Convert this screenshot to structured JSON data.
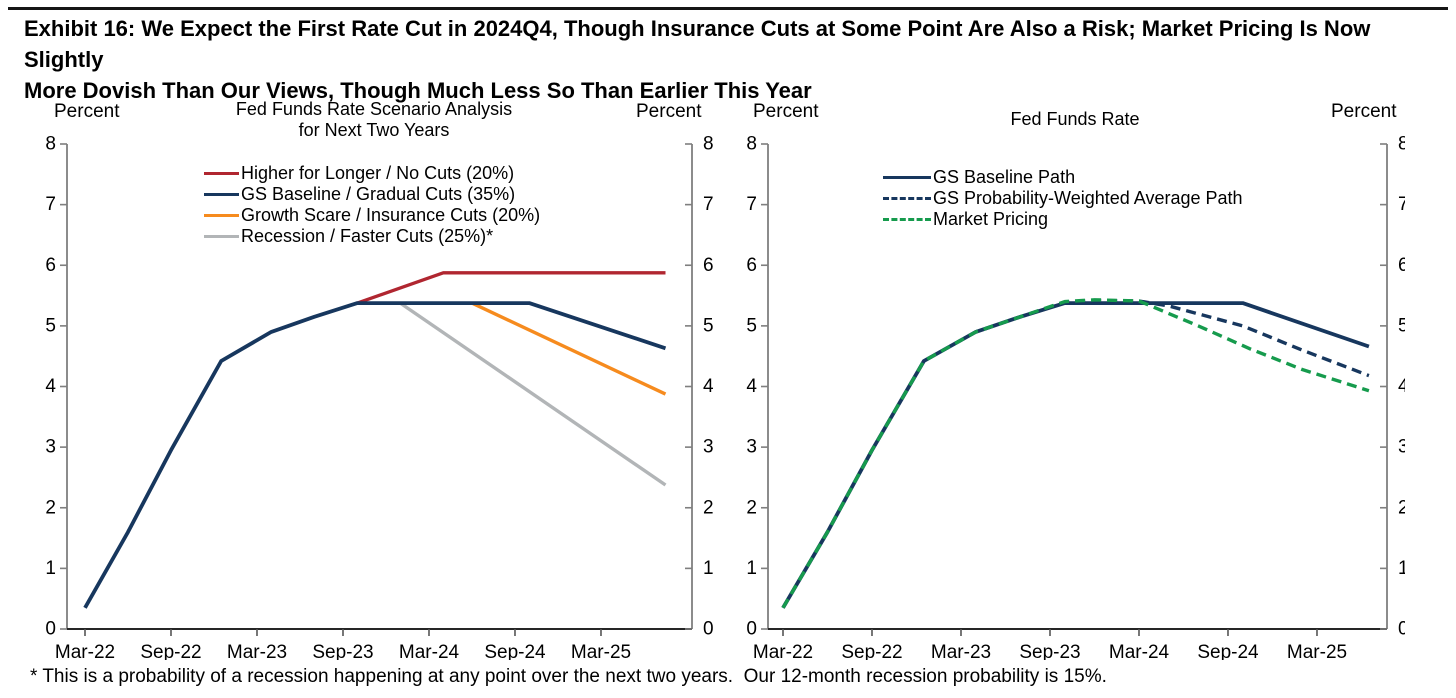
{
  "title_lines": [
    "Exhibit 16: We Expect the First Rate Cut in 2024Q4, Though Insurance Cuts at Some Point Are Also a Risk; Market Pricing Is Now Slightly",
    "More Dovish Than Our Views, Though Much Less So Than Earlier This Year"
  ],
  "footnote": "* This is a probability of a recession happening at any point over the next two years.  Our 12-month recession probability is 15%.",
  "colors": {
    "navy": "#17375e",
    "red": "#b02630",
    "orange": "#f68b1e",
    "gray": "#b2b5b7",
    "green": "#169b4d",
    "axis_gray": "#7f7f7f",
    "axis_dark": "#262626"
  },
  "chart_data": [
    {
      "type": "line",
      "title_lines": [
        "Fed Funds Rate Scenario Analysis",
        "for Next Two Years"
      ],
      "y_axis": {
        "label_left": "Percent",
        "label_right": "Percent",
        "min": 0,
        "max": 8,
        "ticks": [
          0,
          1,
          2,
          3,
          4,
          5,
          6,
          7,
          8
        ],
        "tick_labels": [
          "0",
          "1",
          "2",
          "3",
          "4",
          "5",
          "6",
          "7",
          "8"
        ]
      },
      "x_axis": {
        "unit": "months since Mar-22",
        "tick_months": [
          0,
          6,
          12,
          18,
          24,
          30,
          36
        ],
        "tick_labels": [
          "Mar-22",
          "Sep-22",
          "Mar-23",
          "Sep-23",
          "Mar-24",
          "Sep-24",
          "Mar-25"
        ]
      },
      "grid": false,
      "legend_position": "top-center",
      "series": [
        {
          "name": "Higher for Longer / No Cuts (20%)",
          "color": "#b02630",
          "line_style": "solid",
          "width": 3.3,
          "points": [
            [
              19,
              5.375
            ],
            [
              25,
              5.875
            ],
            [
              40.5,
              5.875
            ]
          ]
        },
        {
          "name": "GS Baseline / Gradual Cuts (35%)",
          "color": "#17375e",
          "line_style": "solid",
          "width": 3.8,
          "points": [
            [
              0,
              0.35
            ],
            [
              3,
              1.6
            ],
            [
              6,
              2.95
            ],
            [
              9.5,
              4.42
            ],
            [
              13,
              4.9
            ],
            [
              16,
              5.15
            ],
            [
              19,
              5.375
            ],
            [
              31,
              5.375
            ],
            [
              40.5,
              4.63
            ]
          ]
        },
        {
          "name": "Growth Scare / Insurance Cuts (20%)",
          "color": "#f68b1e",
          "line_style": "solid",
          "width": 3.4,
          "points": [
            [
              27,
              5.375
            ],
            [
              40.5,
              3.875
            ]
          ]
        },
        {
          "name": "Recession / Faster Cuts (25%)*",
          "color": "#b2b5b7",
          "line_style": "solid",
          "width": 3.4,
          "points": [
            [
              22,
              5.375
            ],
            [
              40.5,
              2.375
            ]
          ]
        }
      ],
      "render_order": [
        3,
        2,
        0,
        1
      ]
    },
    {
      "type": "line",
      "title_lines": [
        "Fed Funds Rate"
      ],
      "y_axis": {
        "label_left": "Percent",
        "label_right": "Percent",
        "min": 0,
        "max": 8,
        "ticks": [
          0,
          1,
          2,
          3,
          4,
          5,
          6,
          7,
          8
        ],
        "tick_labels": [
          "0",
          "1",
          "2",
          "3",
          "4",
          "5",
          "6",
          "7",
          "8"
        ]
      },
      "x_axis": {
        "unit": "months since Mar-22",
        "tick_months": [
          0,
          6,
          12,
          18,
          24,
          30,
          36
        ],
        "tick_labels": [
          "Mar-22",
          "Sep-22",
          "Mar-23",
          "Sep-23",
          "Mar-24",
          "Sep-24",
          "Mar-25"
        ]
      },
      "grid": false,
      "legend_position": "top-center",
      "series": [
        {
          "name": "GS Baseline Path",
          "color": "#17375e",
          "line_style": "solid",
          "width": 3.8,
          "points": [
            [
              0,
              0.35
            ],
            [
              3,
              1.6
            ],
            [
              6,
              2.95
            ],
            [
              9.5,
              4.42
            ],
            [
              13,
              4.9
            ],
            [
              16,
              5.15
            ],
            [
              19,
              5.375
            ],
            [
              31,
              5.375
            ],
            [
              39.5,
              4.66
            ]
          ]
        },
        {
          "name": "GS Probability-Weighted Average Path",
          "color": "#17375e",
          "line_style": "dashed",
          "width": 3.4,
          "points": [
            [
              0,
              0.35
            ],
            [
              3,
              1.6
            ],
            [
              6,
              2.95
            ],
            [
              9.5,
              4.42
            ],
            [
              13,
              4.9
            ],
            [
              16,
              5.15
            ],
            [
              19,
              5.39
            ],
            [
              21,
              5.42
            ],
            [
              24,
              5.41
            ],
            [
              26,
              5.33
            ],
            [
              31,
              5.0
            ],
            [
              35,
              4.6
            ],
            [
              39.5,
              4.18
            ]
          ]
        },
        {
          "name": "Market Pricing",
          "color": "#169b4d",
          "line_style": "dashed",
          "width": 3.4,
          "points": [
            [
              0,
              0.35
            ],
            [
              3,
              1.6
            ],
            [
              6,
              2.95
            ],
            [
              9.5,
              4.42
            ],
            [
              13,
              4.9
            ],
            [
              16,
              5.15
            ],
            [
              19,
              5.4
            ],
            [
              21,
              5.43
            ],
            [
              24,
              5.41
            ],
            [
              28,
              5.0
            ],
            [
              31.5,
              4.62
            ],
            [
              35,
              4.28
            ],
            [
              39.5,
              3.93
            ]
          ]
        }
      ],
      "render_order": [
        0,
        1,
        2
      ]
    }
  ]
}
